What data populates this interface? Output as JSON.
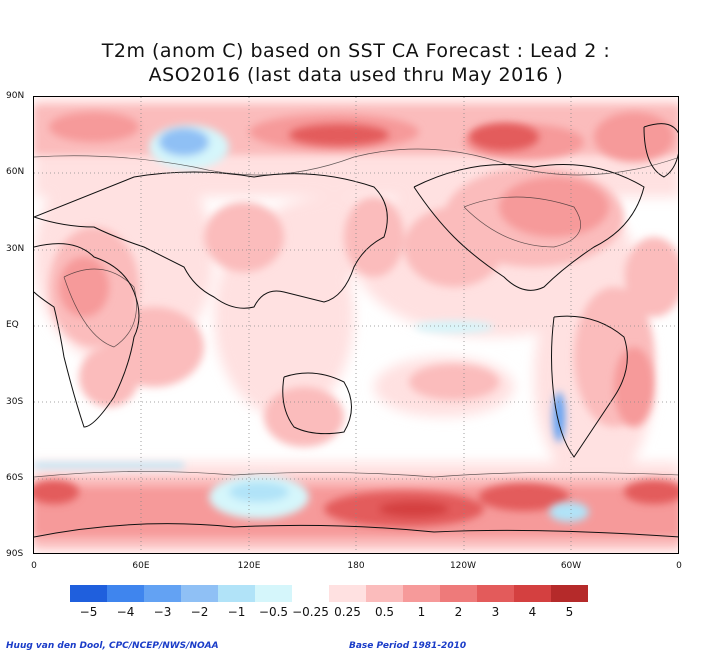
{
  "title": {
    "line1": "T2m (anom C) based on SST CA Forecast : Lead 2 :",
    "line2": "ASO2016 (last data used thru May 2016 )"
  },
  "map": {
    "projection": "cylindrical equidistant",
    "lat_labels": [
      "90N",
      "60N",
      "30N",
      "EQ",
      "30S",
      "60S",
      "90S"
    ],
    "lon_labels": [
      "0",
      "60E",
      "120E",
      "180",
      "120W",
      "60W",
      "0"
    ],
    "grid": "dotted"
  },
  "legend": {
    "colors": [
      "#1f5fdd",
      "#3f85ee",
      "#63a2f3",
      "#8fc0f5",
      "#b1e3f8",
      "#d5f6fb",
      "#ffffff",
      "#ffe1e1",
      "#fbbcbc",
      "#f69a9a",
      "#ee7a7a",
      "#e35b5b",
      "#d44040",
      "#b52a2a"
    ],
    "labels": [
      "−5",
      "−4",
      "−3",
      "−2",
      "−1",
      "−0.5",
      "−0.25",
      "0.25",
      "0.5",
      "1",
      "2",
      "3",
      "4",
      "5"
    ]
  },
  "footer": {
    "credit": "Huug van den Dool, CPC/NCEP/NWS/NOAA",
    "base_period": "Base Period 1981-2010"
  }
}
